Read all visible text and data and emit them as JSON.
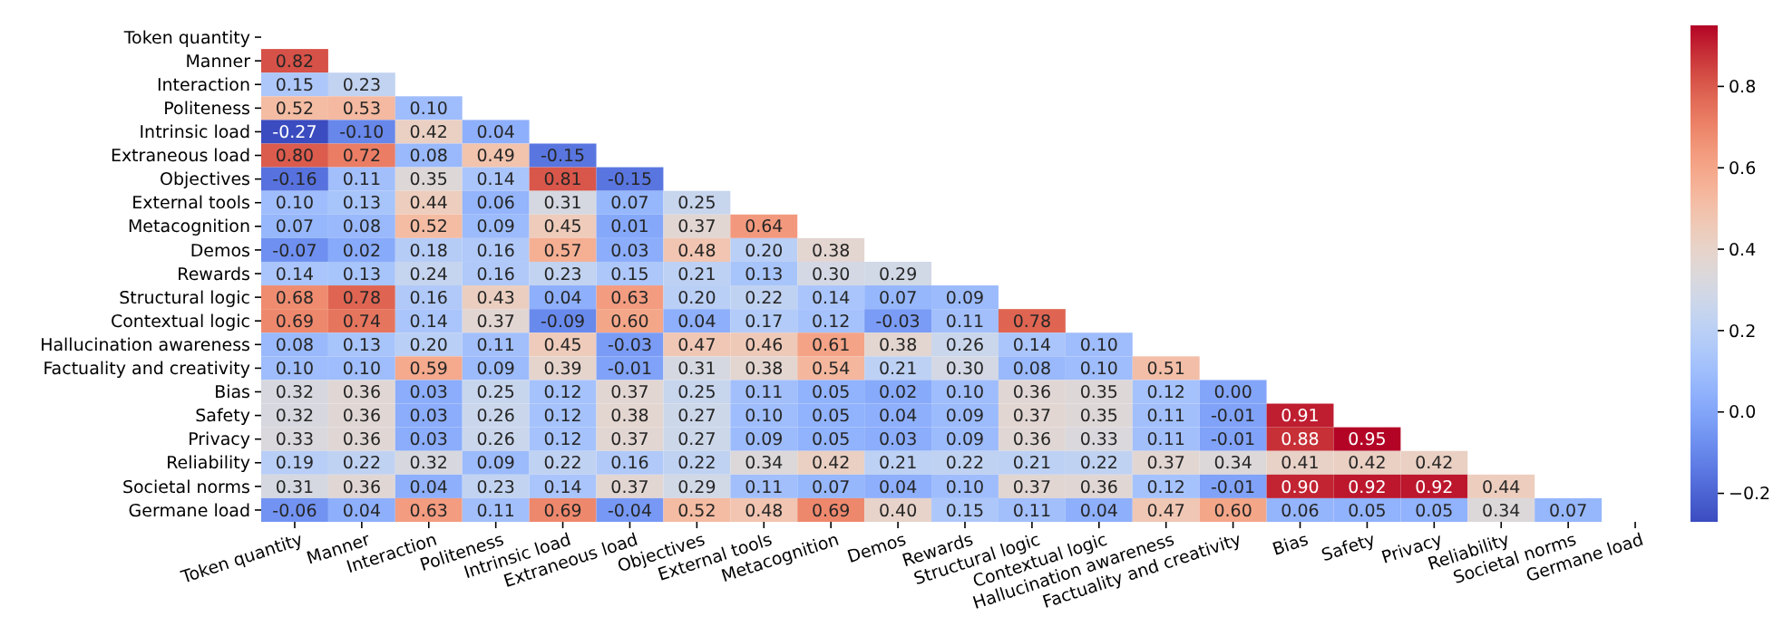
{
  "chart_data": {
    "type": "heatmap",
    "categories": [
      "Token quantity",
      "Manner",
      "Interaction",
      "Politeness",
      "Intrinsic load",
      "Extraneous load",
      "Objectives",
      "External tools",
      "Metacognition",
      "Demos",
      "Rewards",
      "Structural logic",
      "Contextual logic",
      "Hallucination awareness",
      "Factuality and creativity",
      "Bias",
      "Safety",
      "Privacy",
      "Reliability",
      "Societal norms",
      "Germane load"
    ],
    "y_categories": [
      "Token quantity",
      "Manner",
      "Interaction",
      "Politeness",
      "Intrinsic load",
      "Extraneous load",
      "Objectives",
      "External tools",
      "Metacognition",
      "Demos",
      "Rewards",
      "Structural logic",
      "Contextual logic",
      "Hallucination awareness",
      "Factuality and creativity",
      "Bias",
      "Safety",
      "Privacy",
      "Reliability",
      "Societal norms",
      "Germane load"
    ],
    "cells": [
      [
        null,
        null,
        null,
        null,
        null,
        null,
        null,
        null,
        null,
        null,
        null,
        null,
        null,
        null,
        null,
        null,
        null,
        null,
        null,
        null,
        null
      ],
      [
        0.82,
        null,
        null,
        null,
        null,
        null,
        null,
        null,
        null,
        null,
        null,
        null,
        null,
        null,
        null,
        null,
        null,
        null,
        null,
        null,
        null
      ],
      [
        0.15,
        0.23,
        null,
        null,
        null,
        null,
        null,
        null,
        null,
        null,
        null,
        null,
        null,
        null,
        null,
        null,
        null,
        null,
        null,
        null,
        null
      ],
      [
        0.52,
        0.53,
        0.1,
        null,
        null,
        null,
        null,
        null,
        null,
        null,
        null,
        null,
        null,
        null,
        null,
        null,
        null,
        null,
        null,
        null,
        null
      ],
      [
        -0.27,
        -0.1,
        0.42,
        0.04,
        null,
        null,
        null,
        null,
        null,
        null,
        null,
        null,
        null,
        null,
        null,
        null,
        null,
        null,
        null,
        null,
        null
      ],
      [
        0.8,
        0.72,
        0.08,
        0.49,
        -0.15,
        null,
        null,
        null,
        null,
        null,
        null,
        null,
        null,
        null,
        null,
        null,
        null,
        null,
        null,
        null,
        null
      ],
      [
        -0.16,
        0.11,
        0.35,
        0.14,
        0.81,
        -0.15,
        null,
        null,
        null,
        null,
        null,
        null,
        null,
        null,
        null,
        null,
        null,
        null,
        null,
        null,
        null
      ],
      [
        0.1,
        0.13,
        0.44,
        0.06,
        0.31,
        0.07,
        0.25,
        null,
        null,
        null,
        null,
        null,
        null,
        null,
        null,
        null,
        null,
        null,
        null,
        null,
        null
      ],
      [
        0.07,
        0.08,
        0.52,
        0.09,
        0.45,
        0.01,
        0.37,
        0.64,
        null,
        null,
        null,
        null,
        null,
        null,
        null,
        null,
        null,
        null,
        null,
        null,
        null
      ],
      [
        -0.07,
        0.02,
        0.18,
        0.16,
        0.57,
        0.03,
        0.48,
        0.2,
        0.38,
        null,
        null,
        null,
        null,
        null,
        null,
        null,
        null,
        null,
        null,
        null,
        null
      ],
      [
        0.14,
        0.13,
        0.24,
        0.16,
        0.23,
        0.15,
        0.21,
        0.13,
        0.3,
        0.29,
        null,
        null,
        null,
        null,
        null,
        null,
        null,
        null,
        null,
        null,
        null
      ],
      [
        0.68,
        0.78,
        0.16,
        0.43,
        0.04,
        0.63,
        0.2,
        0.22,
        0.14,
        0.07,
        0.09,
        null,
        null,
        null,
        null,
        null,
        null,
        null,
        null,
        null,
        null
      ],
      [
        0.69,
        0.74,
        0.14,
        0.37,
        -0.09,
        0.6,
        0.04,
        0.17,
        0.12,
        -0.03,
        0.11,
        0.78,
        null,
        null,
        null,
        null,
        null,
        null,
        null,
        null,
        null
      ],
      [
        0.08,
        0.13,
        0.2,
        0.11,
        0.45,
        -0.03,
        0.47,
        0.46,
        0.61,
        0.38,
        0.26,
        0.14,
        0.1,
        null,
        null,
        null,
        null,
        null,
        null,
        null,
        null
      ],
      [
        0.1,
        0.1,
        0.59,
        0.09,
        0.39,
        -0.01,
        0.31,
        0.38,
        0.54,
        0.21,
        0.3,
        0.08,
        0.1,
        0.51,
        null,
        null,
        null,
        null,
        null,
        null,
        null
      ],
      [
        0.32,
        0.36,
        0.03,
        0.25,
        0.12,
        0.37,
        0.25,
        0.11,
        0.05,
        0.02,
        0.1,
        0.36,
        0.35,
        0.12,
        0.0,
        null,
        null,
        null,
        null,
        null,
        null
      ],
      [
        0.32,
        0.36,
        0.03,
        0.26,
        0.12,
        0.38,
        0.27,
        0.1,
        0.05,
        0.04,
        0.09,
        0.37,
        0.35,
        0.11,
        -0.01,
        0.91,
        null,
        null,
        null,
        null,
        null
      ],
      [
        0.33,
        0.36,
        0.03,
        0.26,
        0.12,
        0.37,
        0.27,
        0.09,
        0.05,
        0.03,
        0.09,
        0.36,
        0.33,
        0.11,
        -0.01,
        0.88,
        0.95,
        null,
        null,
        null,
        null
      ],
      [
        0.19,
        0.22,
        0.32,
        0.09,
        0.22,
        0.16,
        0.22,
        0.34,
        0.42,
        0.21,
        0.22,
        0.21,
        0.22,
        0.37,
        0.34,
        0.41,
        0.42,
        0.42,
        null,
        null,
        null
      ],
      [
        0.31,
        0.36,
        0.04,
        0.23,
        0.14,
        0.37,
        0.29,
        0.11,
        0.07,
        0.04,
        0.1,
        0.37,
        0.36,
        0.12,
        -0.01,
        0.9,
        0.92,
        0.92,
        0.44,
        null,
        null
      ],
      [
        -0.06,
        0.04,
        0.63,
        0.11,
        0.69,
        -0.04,
        0.52,
        0.48,
        0.69,
        0.4,
        0.15,
        0.11,
        0.04,
        0.47,
        0.6,
        0.06,
        0.05,
        0.05,
        0.34,
        0.07,
        null
      ]
    ],
    "cell_labels": [
      [
        null,
        null,
        null,
        null,
        null,
        null,
        null,
        null,
        null,
        null,
        null,
        null,
        null,
        null,
        null,
        null,
        null,
        null,
        null,
        null,
        null
      ],
      [
        "0.82",
        null,
        null,
        null,
        null,
        null,
        null,
        null,
        null,
        null,
        null,
        null,
        null,
        null,
        null,
        null,
        null,
        null,
        null,
        null,
        null
      ],
      [
        "0.15",
        "0.23",
        null,
        null,
        null,
        null,
        null,
        null,
        null,
        null,
        null,
        null,
        null,
        null,
        null,
        null,
        null,
        null,
        null,
        null,
        null
      ],
      [
        "0.52",
        "0.53",
        "0.10",
        null,
        null,
        null,
        null,
        null,
        null,
        null,
        null,
        null,
        null,
        null,
        null,
        null,
        null,
        null,
        null,
        null,
        null
      ],
      [
        "-0.27",
        "-0.10",
        "0.42",
        "0.04",
        null,
        null,
        null,
        null,
        null,
        null,
        null,
        null,
        null,
        null,
        null,
        null,
        null,
        null,
        null,
        null,
        null
      ],
      [
        "0.80",
        "0.72",
        "0.08",
        "0.49",
        "-0.15",
        null,
        null,
        null,
        null,
        null,
        null,
        null,
        null,
        null,
        null,
        null,
        null,
        null,
        null,
        null,
        null
      ],
      [
        "-0.16",
        "0.11",
        "0.35",
        "0.14",
        "0.81",
        "-0.15",
        null,
        null,
        null,
        null,
        null,
        null,
        null,
        null,
        null,
        null,
        null,
        null,
        null,
        null,
        null
      ],
      [
        "0.10",
        "0.13",
        "0.44",
        "0.06",
        "0.31",
        "0.07",
        "0.25",
        null,
        null,
        null,
        null,
        null,
        null,
        null,
        null,
        null,
        null,
        null,
        null,
        null,
        null
      ],
      [
        "0.07",
        "0.08",
        "0.52",
        "0.09",
        "0.45",
        "0.01",
        "0.37",
        "0.64",
        null,
        null,
        null,
        null,
        null,
        null,
        null,
        null,
        null,
        null,
        null,
        null,
        null
      ],
      [
        "-0.07",
        "0.02",
        "0.18",
        "0.16",
        "0.57",
        "0.03",
        "0.48",
        "0.20",
        "0.38",
        null,
        null,
        null,
        null,
        null,
        null,
        null,
        null,
        null,
        null,
        null,
        null
      ],
      [
        "0.14",
        "0.13",
        "0.24",
        "0.16",
        "0.23",
        "0.15",
        "0.21",
        "0.13",
        "0.30",
        "0.29",
        null,
        null,
        null,
        null,
        null,
        null,
        null,
        null,
        null,
        null,
        null
      ],
      [
        "0.68",
        "0.78",
        "0.16",
        "0.43",
        "0.04",
        "0.63",
        "0.20",
        "0.22",
        "0.14",
        "0.07",
        "0.09",
        null,
        null,
        null,
        null,
        null,
        null,
        null,
        null,
        null,
        null
      ],
      [
        "0.69",
        "0.74",
        "0.14",
        "0.37",
        "-0.09",
        "0.60",
        "0.04",
        "0.17",
        "0.12",
        "-0.03",
        "0.11",
        "0.78",
        null,
        null,
        null,
        null,
        null,
        null,
        null,
        null,
        null
      ],
      [
        "0.08",
        "0.13",
        "0.20",
        "0.11",
        "0.45",
        "-0.03",
        "0.47",
        "0.46",
        "0.61",
        "0.38",
        "0.26",
        "0.14",
        "0.10",
        null,
        null,
        null,
        null,
        null,
        null,
        null,
        null
      ],
      [
        "0.10",
        "0.10",
        "0.59",
        "0.09",
        "0.39",
        "-0.01",
        "0.31",
        "0.38",
        "0.54",
        "0.21",
        "0.30",
        "0.08",
        "0.10",
        "0.51",
        null,
        null,
        null,
        null,
        null,
        null,
        null
      ],
      [
        "0.32",
        "0.36",
        "0.03",
        "0.25",
        "0.12",
        "0.37",
        "0.25",
        "0.11",
        "0.05",
        "0.02",
        "0.10",
        "0.36",
        "0.35",
        "0.12",
        "0.00",
        null,
        null,
        null,
        null,
        null,
        null
      ],
      [
        "0.32",
        "0.36",
        "0.03",
        "0.26",
        "0.12",
        "0.38",
        "0.27",
        "0.10",
        "0.05",
        "0.04",
        "0.09",
        "0.37",
        "0.35",
        "0.11",
        "-0.01",
        "0.91",
        null,
        null,
        null,
        null,
        null
      ],
      [
        "0.33",
        "0.36",
        "0.03",
        "0.26",
        "0.12",
        "0.37",
        "0.27",
        "0.09",
        "0.05",
        "0.03",
        "0.09",
        "0.36",
        "0.33",
        "0.11",
        "-0.01",
        "0.88",
        "0.95",
        null,
        null,
        null,
        null
      ],
      [
        "0.19",
        "0.22",
        "0.32",
        "0.09",
        "0.22",
        "0.16",
        "0.22",
        "0.34",
        "0.42",
        "0.21",
        "0.22",
        "0.21",
        "0.22",
        "0.37",
        "0.34",
        "0.41",
        "0.42",
        "0.42",
        null,
        null,
        null
      ],
      [
        "0.31",
        "0.36",
        "0.04",
        "0.23",
        "0.14",
        "0.37",
        "0.29",
        "0.11",
        "0.07",
        "0.04",
        "0.10",
        "0.37",
        "0.36",
        "0.12",
        "-0.01",
        "0.90",
        "0.92",
        "0.92",
        "0.44",
        null,
        null
      ],
      [
        "-0.06",
        "0.04",
        "0.63",
        "0.11",
        "0.69",
        "-0.04",
        "0.52",
        "0.48",
        "0.69",
        "0.40",
        "0.15",
        "0.11",
        "0.04",
        "0.47",
        "0.60",
        "0.06",
        "0.05",
        "0.05",
        "0.34",
        "0.07",
        null
      ]
    ],
    "clim": [
      -0.27,
      0.95
    ],
    "cticks": [
      {
        "value": -0.2,
        "label": "−0.2"
      },
      {
        "value": 0,
        "label": "0.0"
      },
      {
        "value": 0.2,
        "label": "0.2"
      },
      {
        "value": 0.4,
        "label": "0.4"
      },
      {
        "value": 0.6,
        "label": "0.6"
      },
      {
        "value": 0.8,
        "label": "0.8"
      }
    ]
  }
}
